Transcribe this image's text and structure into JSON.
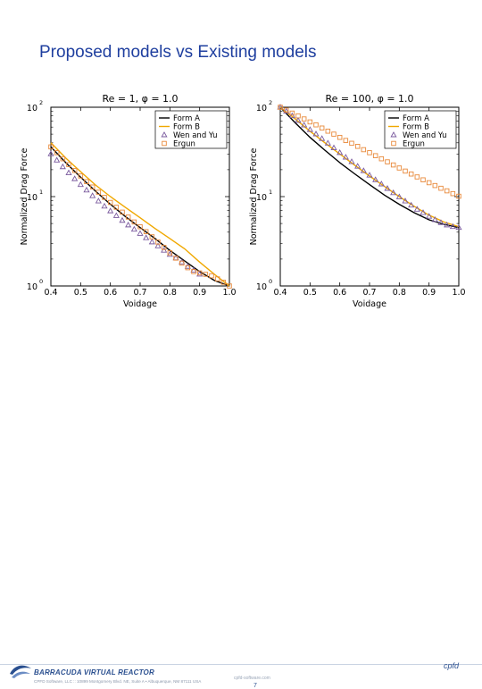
{
  "slide": {
    "title": "Proposed models vs Existing models",
    "brand": "BARRACUDA VIRTUAL REACTOR",
    "address": "CPFD Software, LLC  ::  10899 Montgomery Blvd. NE, Suite A  •  Albuquerque, NM 87111 USA",
    "website": "cpfd-software.com",
    "page_number": "7",
    "cpfd_logo": "cpfd",
    "accent_color": "#1f3f9f"
  },
  "chart_data": [
    {
      "type": "line",
      "title": "Re =  1, φ = 1.0",
      "xlabel": "Voidage",
      "ylabel": "Normalized Drag Force",
      "xlim": [
        0.4,
        1.0
      ],
      "ylim_log10": [
        0,
        2
      ],
      "scale_y": "log",
      "xticks": [
        "0.4",
        "0.5",
        "0.6",
        "0.7",
        "0.8",
        "0.9",
        "1.0"
      ],
      "yticks": [
        {
          "base": "10",
          "exp": "0"
        },
        {
          "base": "10",
          "exp": "1"
        },
        {
          "base": "10",
          "exp": "2"
        }
      ],
      "legend_position": "top-right",
      "x": [
        0.4,
        0.45,
        0.5,
        0.55,
        0.6,
        0.65,
        0.7,
        0.75,
        0.8,
        0.85,
        0.9,
        0.95,
        1.0
      ],
      "series": [
        {
          "name": "Form A",
          "style": "line",
          "color": "#000000",
          "y": [
            36,
            24,
            16.5,
            11.5,
            8.2,
            6.0,
            4.5,
            3.4,
            2.5,
            1.9,
            1.45,
            1.15,
            1.0
          ]
        },
        {
          "name": "Form B",
          "style": "line",
          "color": "#f0a800",
          "y": [
            40,
            27,
            19,
            13.5,
            10,
            7.6,
            5.8,
            4.4,
            3.4,
            2.6,
            1.85,
            1.35,
            1.0
          ]
        },
        {
          "name": "Wen and Yu",
          "style": "triangle",
          "color": "#7a5a9e",
          "x": [
            0.4,
            0.42,
            0.44,
            0.46,
            0.48,
            0.5,
            0.52,
            0.54,
            0.56,
            0.58,
            0.6,
            0.62,
            0.64,
            0.66,
            0.68,
            0.7,
            0.72,
            0.74,
            0.76,
            0.78,
            0.8,
            0.82,
            0.84,
            0.86,
            0.88,
            0.9
          ],
          "y": [
            30,
            25.5,
            21.5,
            18.4,
            15.8,
            13.6,
            11.8,
            10.2,
            8.9,
            7.8,
            6.9,
            6.1,
            5.4,
            4.8,
            4.3,
            3.85,
            3.45,
            3.1,
            2.8,
            2.5,
            2.25,
            2.05,
            1.85,
            1.65,
            1.5,
            1.35
          ]
        },
        {
          "name": "Ergun",
          "style": "square",
          "color": "#e8893a",
          "x": [
            0.4,
            0.42,
            0.44,
            0.46,
            0.48,
            0.5,
            0.52,
            0.54,
            0.56,
            0.58,
            0.6,
            0.62,
            0.64,
            0.66,
            0.68,
            0.7,
            0.72,
            0.74,
            0.76,
            0.78,
            0.8,
            0.82,
            0.84,
            0.86,
            0.88,
            0.9,
            0.92,
            0.94,
            0.96,
            0.98,
            1.0
          ],
          "y": [
            36,
            31,
            26.5,
            22.8,
            19.6,
            17,
            14.7,
            12.8,
            11.2,
            9.8,
            8.6,
            7.6,
            6.7,
            5.9,
            5.2,
            4.6,
            4.05,
            3.55,
            3.1,
            2.7,
            2.35,
            2.05,
            1.8,
            1.6,
            1.45,
            1.4,
            1.35,
            1.3,
            1.2,
            1.1,
            1.0
          ]
        }
      ]
    },
    {
      "type": "line",
      "title": "Re = 100, φ = 1.0",
      "xlabel": "Voidage",
      "ylabel": "Normalized Drag Force",
      "xlim": [
        0.4,
        1.0
      ],
      "ylim_log10": [
        0,
        2
      ],
      "scale_y": "log",
      "xticks": [
        "0.4",
        "0.5",
        "0.6",
        "0.7",
        "0.8",
        "0.9",
        "1.0"
      ],
      "yticks": [
        {
          "base": "10",
          "exp": "0"
        },
        {
          "base": "10",
          "exp": "1"
        },
        {
          "base": "10",
          "exp": "2"
        }
      ],
      "legend_position": "top-right",
      "x": [
        0.4,
        0.45,
        0.5,
        0.55,
        0.6,
        0.65,
        0.7,
        0.75,
        0.8,
        0.85,
        0.9,
        0.95,
        1.0
      ],
      "series": [
        {
          "name": "Form A",
          "style": "line",
          "color": "#000000",
          "y": [
            100,
            67,
            46,
            33,
            24,
            18,
            13.6,
            10.4,
            8.2,
            6.6,
            5.5,
            4.9,
            4.5
          ]
        },
        {
          "name": "Form B",
          "style": "line",
          "color": "#f0a800",
          "y": [
            100,
            74,
            54,
            40,
            30,
            22.5,
            17,
            13,
            10,
            7.8,
            6.2,
            5.2,
            4.6
          ]
        },
        {
          "name": "Wen and Yu",
          "style": "triangle",
          "color": "#7a5a9e",
          "x": [
            0.4,
            0.42,
            0.44,
            0.46,
            0.48,
            0.5,
            0.52,
            0.54,
            0.56,
            0.58,
            0.6,
            0.62,
            0.64,
            0.66,
            0.68,
            0.7,
            0.72,
            0.74,
            0.76,
            0.78,
            0.8,
            0.82,
            0.84,
            0.86,
            0.88,
            0.9,
            0.92,
            0.94,
            0.96,
            0.98,
            1.0
          ],
          "y": [
            100,
            90,
            80,
            71,
            63,
            56,
            50,
            44.5,
            39.5,
            35,
            31,
            27.5,
            24.5,
            21.8,
            19.4,
            17.3,
            15.4,
            13.8,
            12.3,
            11,
            9.9,
            8.9,
            8.0,
            7.2,
            6.6,
            6.0,
            5.5,
            5.1,
            4.8,
            4.6,
            4.5
          ]
        },
        {
          "name": "Ergun",
          "style": "square",
          "color": "#e8893a",
          "x": [
            0.4,
            0.42,
            0.44,
            0.46,
            0.48,
            0.5,
            0.52,
            0.54,
            0.56,
            0.58,
            0.6,
            0.62,
            0.64,
            0.66,
            0.68,
            0.7,
            0.72,
            0.74,
            0.76,
            0.78,
            0.8,
            0.82,
            0.84,
            0.86,
            0.88,
            0.9,
            0.92,
            0.94,
            0.96,
            0.98,
            1.0
          ],
          "y": [
            100,
            93,
            86,
            80,
            74,
            68.5,
            63.5,
            58.5,
            54,
            50,
            46,
            42.5,
            39.5,
            36.5,
            33.5,
            31,
            28.7,
            26.5,
            24.5,
            22.6,
            20.9,
            19.3,
            17.9,
            16.6,
            15.4,
            14.3,
            13.3,
            12.4,
            11.6,
            10.8,
            10.1
          ]
        }
      ]
    }
  ]
}
